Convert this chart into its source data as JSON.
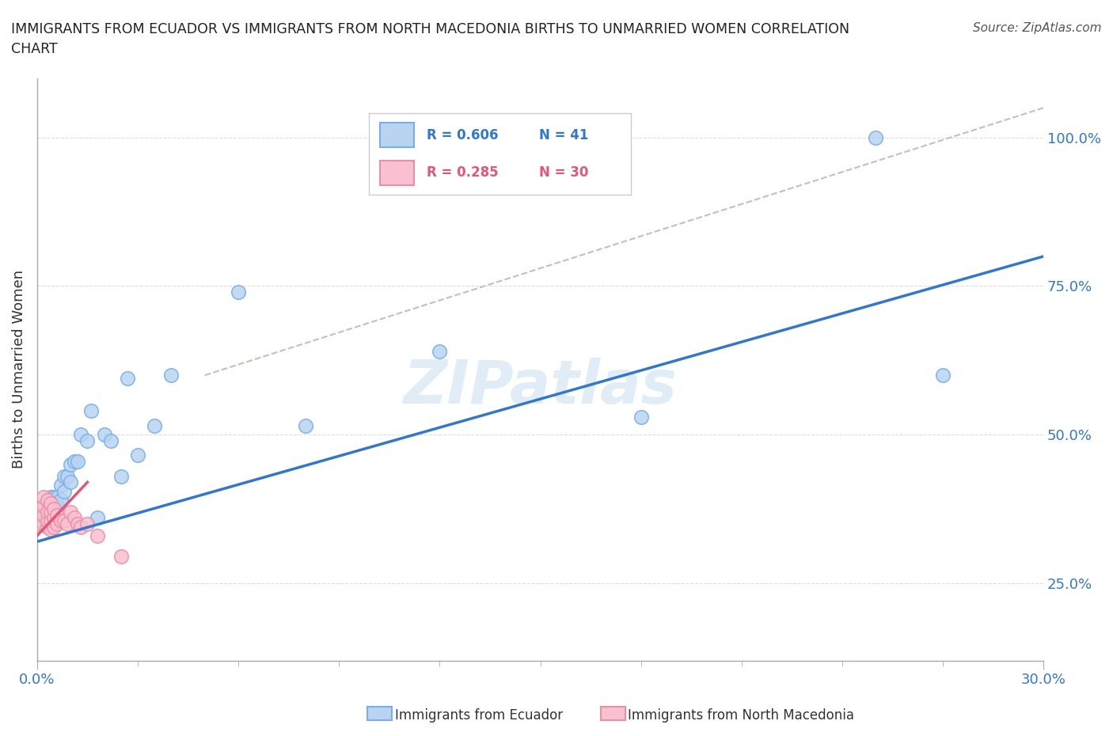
{
  "title": "IMMIGRANTS FROM ECUADOR VS IMMIGRANTS FROM NORTH MACEDONIA BIRTHS TO UNMARRIED WOMEN CORRELATION\nCHART",
  "source": "Source: ZipAtlas.com",
  "ylabel": "Births to Unmarried Women",
  "ytick_labels": [
    "25.0%",
    "50.0%",
    "75.0%",
    "100.0%"
  ],
  "ytick_values": [
    0.25,
    0.5,
    0.75,
    1.0
  ],
  "xtick_left_label": "0.0%",
  "xtick_right_label": "30.0%",
  "xlim": [
    0.0,
    0.3
  ],
  "ylim": [
    0.12,
    1.1
  ],
  "watermark": "ZIPatlas",
  "ecuador_color": "#b8d4f0",
  "ecuador_edge": "#7aaee8",
  "macedonia_color": "#f8c0d0",
  "macedonia_edge": "#e890a8",
  "trendline_ecuador_color": "#3377cc",
  "trendline_macedonia_color": "#e05878",
  "trendline_dashed_color": "#ccbbbb",
  "legend_ecuador_label": "Immigrants from Ecuador",
  "legend_macedonia_label": "Immigrants from North Macedonia",
  "legend_R_ecuador": "R = 0.606",
  "legend_N_ecuador": "N = 41",
  "legend_R_macedonia": "R = 0.285",
  "legend_N_macedonia": "N = 30",
  "ecuador_x": [
    0.001,
    0.001,
    0.002,
    0.002,
    0.003,
    0.003,
    0.003,
    0.004,
    0.004,
    0.004,
    0.005,
    0.005,
    0.005,
    0.006,
    0.006,
    0.007,
    0.007,
    0.008,
    0.008,
    0.009,
    0.01,
    0.01,
    0.011,
    0.012,
    0.013,
    0.015,
    0.016,
    0.018,
    0.02,
    0.022,
    0.025,
    0.027,
    0.03,
    0.035,
    0.04,
    0.06,
    0.08,
    0.12,
    0.18,
    0.25,
    0.27
  ],
  "ecuador_y": [
    0.355,
    0.365,
    0.355,
    0.37,
    0.36,
    0.375,
    0.39,
    0.365,
    0.38,
    0.395,
    0.36,
    0.375,
    0.395,
    0.38,
    0.395,
    0.39,
    0.415,
    0.405,
    0.43,
    0.43,
    0.42,
    0.45,
    0.455,
    0.455,
    0.5,
    0.49,
    0.54,
    0.36,
    0.5,
    0.49,
    0.43,
    0.595,
    0.465,
    0.515,
    0.6,
    0.74,
    0.515,
    0.64,
    0.53,
    1.0,
    0.6
  ],
  "macedonia_x": [
    0.001,
    0.001,
    0.001,
    0.002,
    0.002,
    0.002,
    0.002,
    0.003,
    0.003,
    0.003,
    0.003,
    0.004,
    0.004,
    0.004,
    0.004,
    0.005,
    0.005,
    0.005,
    0.006,
    0.006,
    0.007,
    0.008,
    0.009,
    0.01,
    0.011,
    0.012,
    0.013,
    0.015,
    0.018,
    0.025
  ],
  "macedonia_y": [
    0.35,
    0.36,
    0.375,
    0.35,
    0.365,
    0.38,
    0.395,
    0.345,
    0.355,
    0.37,
    0.39,
    0.34,
    0.355,
    0.37,
    0.385,
    0.345,
    0.36,
    0.375,
    0.35,
    0.365,
    0.355,
    0.355,
    0.35,
    0.37,
    0.36,
    0.35,
    0.345,
    0.35,
    0.33,
    0.295
  ],
  "ecuador_trendline_x": [
    0.0,
    0.3
  ],
  "ecuador_trendline_y": [
    0.32,
    0.8
  ],
  "macedonia_trendline_x": [
    0.0,
    0.015
  ],
  "macedonia_trendline_y": [
    0.33,
    0.42
  ],
  "dashed_trendline_x": [
    0.05,
    0.3
  ],
  "dashed_trendline_y": [
    0.6,
    1.05
  ]
}
